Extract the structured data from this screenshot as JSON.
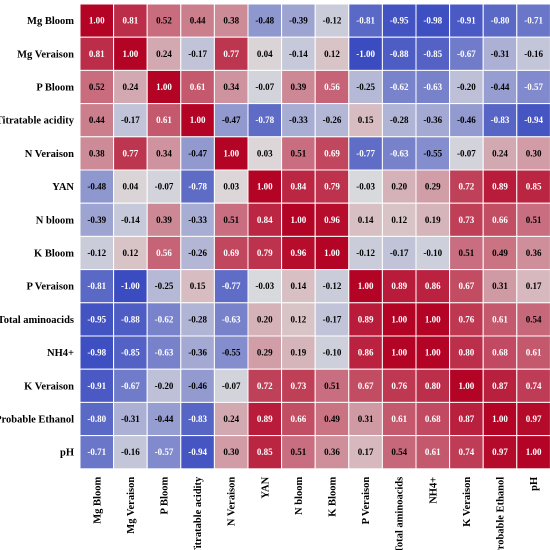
{
  "chart_data": {
    "type": "heatmap",
    "title": "",
    "rows": [
      "Mg Bloom",
      "Mg Veraison",
      "P Bloom",
      "Titratable acidity",
      "N Veraison",
      "YAN",
      "N bloom",
      "K Bloom",
      "P Veraison",
      "Total aminoacids",
      "NH4+",
      "K Veraison",
      "Probable Ethanol",
      "pH"
    ],
    "columns": [
      "Mg Bloom",
      "Mg Veraison",
      "P Bloom",
      "Titratable acidity",
      "N Veraison",
      "YAN",
      "N bloom",
      "K Bloom",
      "P Veraison",
      "Total aminoacids",
      "NH4+",
      "K Veraison",
      "Probable Ethanol",
      "pH"
    ],
    "values": [
      [
        "1.00",
        "0.81",
        "0.52",
        "0.44",
        "0.38",
        "-0.48",
        "-0.39",
        "-0.12",
        "-0.81",
        "-0.95",
        "-0.98",
        "-0.91",
        "-0.80",
        "-0.71"
      ],
      [
        "0.81",
        "1.00",
        "0.24",
        "-0.17",
        "0.77",
        "0.04",
        "-0.14",
        "0.12",
        "-1.00",
        "-0.88",
        "-0.85",
        "-0.67",
        "-0.31",
        "-0.16"
      ],
      [
        "0.52",
        "0.24",
        "1.00",
        "0.61",
        "0.34",
        "-0.07",
        "0.39",
        "0.56",
        "-0.25",
        "-0.62",
        "-0.63",
        "-0.20",
        "-0.44",
        "-0.57"
      ],
      [
        "0.44",
        "-0.17",
        "0.61",
        "1.00",
        "-0.47",
        "-0.78",
        "-0.33",
        "-0.26",
        "0.15",
        "-0.28",
        "-0.36",
        "-0.46",
        "-0.83",
        "-0.94"
      ],
      [
        "0.38",
        "0.77",
        "0.34",
        "-0.47",
        "1.00",
        "0.03",
        "0.51",
        "0.69",
        "-0.77",
        "-0.63",
        "-0.55",
        "-0.07",
        "0.24",
        "0.30"
      ],
      [
        "-0.48",
        "0.04",
        "-0.07",
        "-0.78",
        "0.03",
        "1.00",
        "0.84",
        "0.79",
        "-0.03",
        "0.20",
        "0.29",
        "0.72",
        "0.89",
        "0.85"
      ],
      [
        "-0.39",
        "-0.14",
        "0.39",
        "-0.33",
        "0.51",
        "0.84",
        "1.00",
        "0.96",
        "0.14",
        "0.12",
        "0.19",
        "0.73",
        "0.66",
        "0.51"
      ],
      [
        "-0.12",
        "0.12",
        "0.56",
        "-0.26",
        "0.69",
        "0.79",
        "0.96",
        "1.00",
        "-0.12",
        "-0.17",
        "-0.10",
        "0.51",
        "0.49",
        "0.36"
      ],
      [
        "-0.81",
        "-1.00",
        "-0.25",
        "0.15",
        "-0.77",
        "-0.03",
        "0.14",
        "-0.12",
        "1.00",
        "0.89",
        "0.86",
        "0.67",
        "0.31",
        "0.17"
      ],
      [
        "-0.95",
        "-0.88",
        "-0.62",
        "-0.28",
        "-0.63",
        "0.20",
        "0.12",
        "-0.17",
        "0.89",
        "1.00",
        "1.00",
        "0.76",
        "0.61",
        "0.54"
      ],
      [
        "-0.98",
        "-0.85",
        "-0.63",
        "-0.36",
        "-0.55",
        "0.29",
        "0.19",
        "-0.10",
        "0.86",
        "1.00",
        "1.00",
        "0.80",
        "0.68",
        "0.61"
      ],
      [
        "-0.91",
        "-0.67",
        "-0.20",
        "-0.46",
        "-0.07",
        "0.72",
        "0.73",
        "0.51",
        "0.67",
        "0.76",
        "0.80",
        "1.00",
        "0.87",
        "0.74"
      ],
      [
        "-0.80",
        "-0.31",
        "-0.44",
        "-0.83",
        "0.24",
        "0.89",
        "0.66",
        "0.49",
        "0.31",
        "0.61",
        "0.68",
        "0.87",
        "1.00",
        "0.97"
      ],
      [
        "-0.71",
        "-0.16",
        "-0.57",
        "-0.94",
        "0.30",
        "0.85",
        "0.51",
        "0.36",
        "0.17",
        "0.54",
        "0.61",
        "0.74",
        "0.97",
        "1.00"
      ]
    ],
    "value_range": [
      -1,
      1
    ],
    "colormap": {
      "negative": "#3b4cc0",
      "neutral": "#dddddd",
      "positive": "#b40426"
    },
    "cell_border_color": "#ffffff",
    "grid": false,
    "legend": "none"
  }
}
